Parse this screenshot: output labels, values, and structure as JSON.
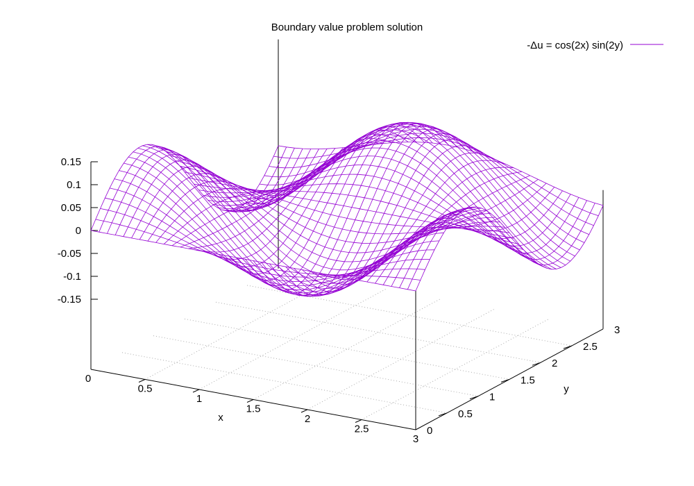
{
  "chart_data": {
    "type": "surface",
    "title": "Boundary value problem solution",
    "xlabel": "x",
    "ylabel": "y",
    "zlabel": "",
    "legend": {
      "placement": "top-right",
      "entries": [
        {
          "label": "-Δu = cos(2x) sin(2y)",
          "color": "#9400d3"
        }
      ]
    },
    "xlim": [
      0,
      3
    ],
    "ylim": [
      0,
      3
    ],
    "zlim": [
      -0.15,
      0.15
    ],
    "x_ticks": [
      "0",
      "0.5",
      "1",
      "1.5",
      "2",
      "2.5",
      "3"
    ],
    "y_ticks": [
      "0",
      "0.5",
      "1",
      "1.5",
      "2",
      "2.5",
      "3"
    ],
    "z_ticks": [
      "0.15",
      "0.1",
      "0.05",
      "0",
      "-0.05",
      "-0.1",
      "-0.15"
    ],
    "grid": "dotted base plane",
    "surface": {
      "function": "u(x,y) = cos(2x)·sin(2y)/8",
      "amplitude": 0.125,
      "samples": 40
    },
    "series_color": "#9400d3"
  }
}
